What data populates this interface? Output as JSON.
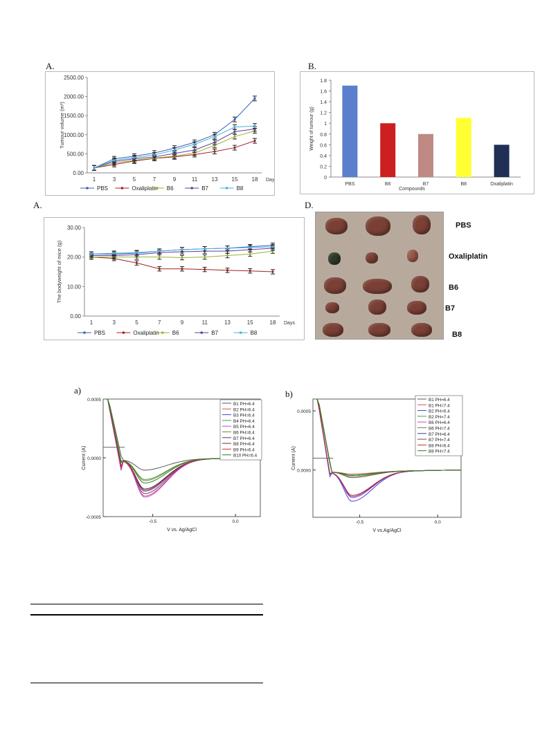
{
  "labels": {
    "panel_a1": "A.",
    "panel_b": "B.",
    "panel_a2": "A.",
    "panel_d": "D.",
    "cv_a": "a)",
    "cv_b": "b)"
  },
  "colors": {
    "PBS": "#3a62b0",
    "Oxaliplatin": "#a02020",
    "B6": "#9ab030",
    "B7": "#5a3e98",
    "B8": "#4aaee0"
  },
  "photo": {
    "labels": [
      "PBS",
      "Oxaliplatin",
      "B6",
      "B7",
      "B8"
    ]
  },
  "chart_data": [
    {
      "type": "line",
      "ylabel": "Tumour volume (m³)",
      "xlabel": "Days",
      "x": [
        1,
        3,
        5,
        7,
        9,
        11,
        13,
        15,
        18
      ],
      "yticks": [
        "0.00",
        "500.00",
        "1000.00",
        "1500.00",
        "2000.00",
        "2500.00"
      ],
      "ylim": [
        0,
        2500
      ],
      "series": [
        {
          "name": "PBS",
          "values": [
            130,
            370,
            440,
            520,
            650,
            800,
            1000,
            1400,
            1950
          ]
        },
        {
          "name": "Oxaliplatin",
          "values": [
            130,
            220,
            310,
            380,
            420,
            480,
            560,
            660,
            840
          ]
        },
        {
          "name": "B6",
          "values": [
            130,
            260,
            330,
            390,
            440,
            520,
            720,
            950,
            1100
          ]
        },
        {
          "name": "B7",
          "values": [
            130,
            300,
            370,
            420,
            510,
            600,
            800,
            1080,
            1150
          ]
        },
        {
          "name": "B8",
          "values": [
            130,
            330,
            400,
            470,
            600,
            750,
            950,
            1200,
            1230
          ]
        }
      ],
      "legend": "bottom"
    },
    {
      "type": "bar",
      "ylabel": "Weight of tumour (g)",
      "xlabel": "Compounds",
      "categories": [
        "PBS",
        "B6",
        "B7",
        "B8",
        "Oxaliplatin"
      ],
      "values": [
        1.7,
        1.0,
        0.8,
        1.1,
        0.6
      ],
      "bar_colors": [
        "#5b7fcc",
        "#cc1f1f",
        "#bf8a84",
        "#ffff33",
        "#1f2f55"
      ],
      "yticks": [
        "0",
        "0.2",
        "0.4",
        "0.6",
        "0.8",
        "1",
        "1.2",
        "1.4",
        "1.6",
        "1.8"
      ],
      "ylim": [
        0,
        1.8
      ]
    },
    {
      "type": "line",
      "ylabel": "The bodyweight of mice (g)",
      "xlabel": "Days",
      "x": [
        1,
        3,
        5,
        7,
        9,
        11,
        13,
        15,
        18
      ],
      "yticks": [
        "0.00",
        "10.00",
        "20.00",
        "30.00"
      ],
      "ylim": [
        0,
        30
      ],
      "series": [
        {
          "name": "PBS",
          "values": [
            21,
            21,
            21.3,
            22,
            22.5,
            22.8,
            23,
            23.5,
            24
          ]
        },
        {
          "name": "Oxaliplatin",
          "values": [
            20,
            19.5,
            18,
            16,
            16,
            15.8,
            15.5,
            15.3,
            15
          ]
        },
        {
          "name": "B6",
          "values": [
            20,
            20,
            20,
            20,
            19.8,
            20,
            20.5,
            21,
            22
          ]
        },
        {
          "name": "B7",
          "values": [
            20.5,
            20.5,
            20.8,
            21.5,
            21.8,
            22,
            22,
            22.5,
            23
          ]
        },
        {
          "name": "B8",
          "values": [
            21,
            21.3,
            21.5,
            22,
            22.5,
            22.8,
            23,
            23.2,
            23.5
          ]
        }
      ],
      "legend": "bottom"
    },
    {
      "type": "line",
      "ylabel": "Current (A)",
      "xlabel": "V vs. Ag/AgCl",
      "xlim": [
        -0.8,
        0.15
      ],
      "ylim": [
        -0.0005,
        0.0005
      ],
      "xticks": [
        "-0.5",
        "0.0"
      ],
      "yticks": [
        "-0.0005",
        "0.0000",
        "0.0005"
      ],
      "peak_potential": -0.55,
      "series": [
        {
          "name": "B1 PH=6.4",
          "color": "#555555",
          "peak": -9e-05
        },
        {
          "name": "B2 PH=6.4",
          "color": "#e05050",
          "peak": -0.00031
        },
        {
          "name": "B3 PH=6.4",
          "color": "#4040d0",
          "peak": -0.00029
        },
        {
          "name": "B4 PH=6.4",
          "color": "#40a040",
          "peak": -0.00017
        },
        {
          "name": "B5 PH=6.4",
          "color": "#d040d0",
          "peak": -0.00032
        },
        {
          "name": "B6 PH=6.4",
          "color": "#808040",
          "peak": -0.00018
        },
        {
          "name": "B7 PH=6.4",
          "color": "#3a3a90",
          "peak": -0.00026
        },
        {
          "name": "B8 PH=6.4",
          "color": "#7a2a2a",
          "peak": -0.00025
        },
        {
          "name": "B9 PH=6.4",
          "color": "#c03030",
          "peak": -0.00027
        },
        {
          "name": "B10 PH=6.4",
          "color": "#208020",
          "peak": -0.0002
        }
      ],
      "legend": "top-right"
    },
    {
      "type": "line",
      "ylabel": "Current (A)",
      "xlabel": "V vs.Ag/AgCl",
      "xlim": [
        -0.8,
        0.15
      ],
      "ylim": [
        -0.0004,
        0.0006
      ],
      "xticks": [
        "-0.5",
        "0.0"
      ],
      "yticks": [
        "0.0000",
        "0.0005"
      ],
      "peak_potential": -0.55,
      "series": [
        {
          "name": "B1 PH=6.4",
          "color": "#555555",
          "peak": -3e-05
        },
        {
          "name": "B1 PH=7.4",
          "color": "#e05050",
          "peak": -2e-05
        },
        {
          "name": "B2 PH=6.4",
          "color": "#4040d0",
          "peak": -0.00025
        },
        {
          "name": "B2 PH=7.4",
          "color": "#40a040",
          "peak": -4e-05
        },
        {
          "name": "B6 PH=6.4",
          "color": "#d040d0",
          "peak": -0.00022
        },
        {
          "name": "B6 PH=7.4",
          "color": "#808040",
          "peak": -3e-05
        },
        {
          "name": "B7 PH=6.4",
          "color": "#3a3a90",
          "peak": -0.00021
        },
        {
          "name": "B7 PH=7.4",
          "color": "#7a4a4a",
          "peak": -5e-05
        },
        {
          "name": "B8 PH=6.4",
          "color": "#c03030",
          "peak": -0.0002
        },
        {
          "name": "B8 PH=7.4",
          "color": "#208020",
          "peak": -3e-05
        }
      ],
      "legend": "top-right"
    }
  ]
}
